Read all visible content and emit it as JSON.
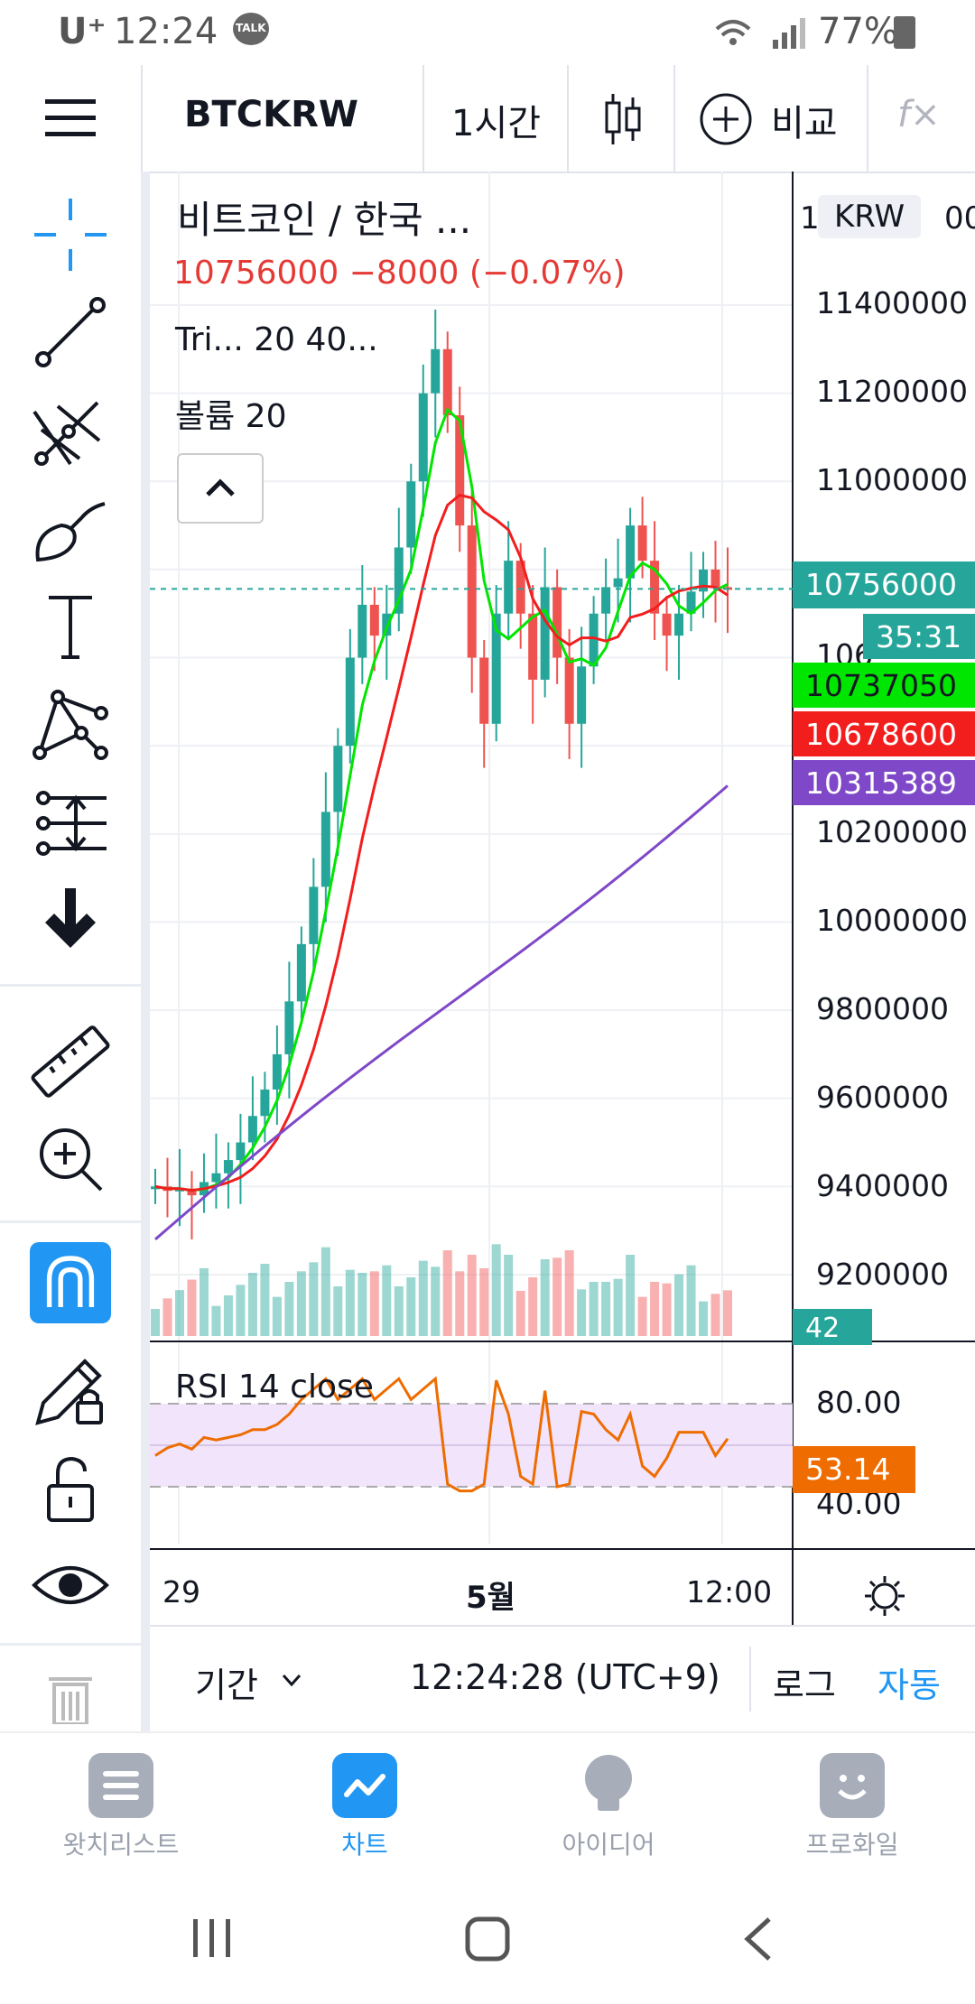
{
  "status_bar": {
    "carrier": "U⁺",
    "time": "12:24",
    "talk_badge": "TALK",
    "battery": "77%"
  },
  "toolbar": {
    "symbol": "BTCKRW",
    "interval": "1시간",
    "compare_label": "비교",
    "fx_label": "f×"
  },
  "chart": {
    "title": "비트코인 / 한국 ...",
    "price_line": "10756000  −8000 (−0.07%)",
    "indicator_1": "Tri...  20 40...",
    "volume_label": "볼륨 20",
    "currency": "KRW",
    "y_ticks": [
      "11400000",
      "11200000",
      "11000000",
      "10200000",
      "10000000",
      "9800000",
      "9600000",
      "9400000",
      "9200000"
    ],
    "price_tags": {
      "last": "10756000",
      "countdown": "35:31",
      "ma_green": "10737050",
      "ma_red": "10678600",
      "ma_purple": "10315389",
      "volume": "42"
    },
    "partial_ticks": {
      "top": "1",
      "top_right": "00",
      "mid": "106"
    },
    "x_ticks": [
      "29",
      "5월",
      "12:00"
    ],
    "rsi_label": "RSI 14 close",
    "rsi_ticks": [
      "80.00",
      "40.00"
    ],
    "rsi_value": "53.14"
  },
  "chart_data": {
    "type": "candlestick",
    "symbol": "BTCKRW",
    "interval": "1시간",
    "last_price": 10756000,
    "change": -8000,
    "change_pct": -0.07,
    "close_series": [
      9400000,
      9390000,
      9395000,
      9380000,
      9410000,
      9430000,
      9460000,
      9500000,
      9560000,
      9620000,
      9700000,
      9820000,
      9950000,
      10080000,
      10250000,
      10400000,
      10600000,
      10720000,
      10650000,
      10700000,
      10850000,
      11000000,
      11200000,
      11300000,
      11150000,
      10900000,
      10600000,
      10450000,
      10700000,
      10820000,
      10700000,
      10550000,
      10760000,
      10600000,
      10450000,
      10580000,
      10700000,
      10760000,
      10780000,
      10900000,
      10820000,
      10700000,
      10650000,
      10700000,
      10750000,
      10800000,
      10760000,
      10756000
    ],
    "ma_green": 10737050,
    "ma_red": 10678600,
    "ma_purple": 10315389,
    "ylim": [
      9100000,
      11500000
    ],
    "rsi": {
      "period": 14,
      "value": 53.14,
      "upper": 70,
      "lower": 30
    }
  },
  "chart_bottom": {
    "range_label": "기간",
    "timestamp": "12:24:28 (UTC+9)",
    "log_label": "로그",
    "auto_label": "자동"
  },
  "app_nav": {
    "items": [
      "왓치리스트",
      "차트",
      "아이디어",
      "프로화일"
    ],
    "active": "차트"
  },
  "colors": {
    "up": "#26a69a",
    "down": "#ef5350",
    "ma_green": "#00e600",
    "ma_red": "#f21e1e",
    "ma_purple": "#7e48c8",
    "accent": "#2196f3",
    "rsi_line": "#ef6c00"
  }
}
